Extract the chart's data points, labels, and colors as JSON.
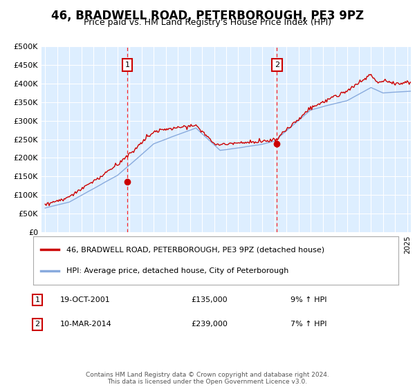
{
  "title": "46, BRADWELL ROAD, PETERBOROUGH, PE3 9PZ",
  "subtitle": "Price paid vs. HM Land Registry's House Price Index (HPI)",
  "title_fontsize": 12,
  "subtitle_fontsize": 9.5,
  "bg_color": "#ddeeff",
  "fig_bg_color": "#ffffff",
  "legend_entries": [
    "46, BRADWELL ROAD, PETERBOROUGH, PE3 9PZ (detached house)",
    "HPI: Average price, detached house, City of Peterborough"
  ],
  "legend_colors": [
    "#cc0000",
    "#88aadd"
  ],
  "annotation1": {
    "label": "1",
    "date_str": "19-OCT-2001",
    "price": "£135,000",
    "hpi": "9% ↑ HPI",
    "x_year": 2001.8
  },
  "annotation2": {
    "label": "2",
    "date_str": "10-MAR-2014",
    "price": "£239,000",
    "hpi": "7% ↑ HPI",
    "x_year": 2014.2
  },
  "footer": "Contains HM Land Registry data © Crown copyright and database right 2024.\nThis data is licensed under the Open Government Licence v3.0.",
  "ylim": [
    0,
    500000
  ],
  "xlim_start": 1994.7,
  "xlim_end": 2025.3
}
